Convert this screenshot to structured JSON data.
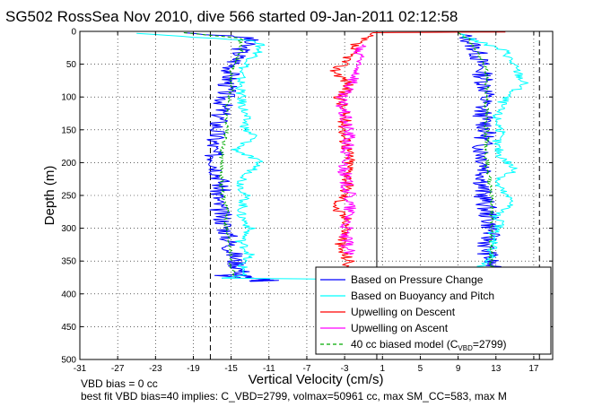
{
  "chart_data": {
    "type": "line",
    "title": "SG502 RossSea Nov 2010, dive 566 started 09-Jan-2011 02:12:58",
    "xlabel": "Vertical Velocity (cm/s)",
    "ylabel": "Depth (m)",
    "xlim": [
      -31,
      19
    ],
    "ylim": [
      0,
      500
    ],
    "y_reversed": true,
    "grid": true,
    "legend_position": "bottom-right",
    "xticks": [
      -31,
      -27,
      -23,
      -19,
      -15,
      -11,
      -7,
      -3,
      1,
      5,
      9,
      13,
      17
    ],
    "yticks": [
      0,
      50,
      100,
      150,
      200,
      250,
      300,
      350,
      400,
      450,
      500
    ],
    "reference_lines": [
      {
        "x": -17.2,
        "style": "dashed"
      },
      {
        "x": 0.4,
        "style": "solid"
      },
      {
        "x": 17.6,
        "style": "dashed"
      }
    ],
    "series": [
      {
        "name": "Based on Pressure Change",
        "color": "#0000ff",
        "segments": [
          {
            "x": [
              -20,
              -13,
              -14,
              -15,
              -15.5,
              -16,
              -16.5,
              -17,
              -16.5,
              -16,
              -16.5,
              -15.5,
              -15,
              -14.5,
              -13.5
            ],
            "y": [
              2,
              10,
              30,
              60,
              90,
              120,
              150,
              180,
              200,
              230,
              260,
              300,
              330,
              350,
              375
            ]
          },
          {
            "x": [
              -14,
              -16.5,
              -16,
              -15,
              -15,
              -14,
              -13.5,
              -12,
              -11,
              -10.5,
              -10.5,
              -11.5,
              -11,
              -11,
              -13,
              -12,
              -12,
              -13
            ],
            "y": [
              375,
              372,
              372,
              371,
              371,
              372,
              374,
              376,
              378,
              379,
              380,
              379,
              379,
              379,
              380,
              380,
              380,
              381
            ]
          },
          {
            "x": [
              9,
              10,
              11,
              11.5,
              12,
              11.5,
              12,
              11.5,
              12,
              11.5,
              12,
              12.5,
              12,
              12.5
            ],
            "y": [
              2,
              10,
              30,
              60,
              90,
              120,
              150,
              180,
              210,
              240,
              270,
              300,
              330,
              360
            ]
          }
        ]
      },
      {
        "name": "Based on Buoyancy and Pitch",
        "color": "#00ffff",
        "segments": [
          {
            "x": [
              -25,
              -12,
              -12,
              -14,
              -14,
              -13.5,
              -13.5,
              -12.5,
              -14.5,
              -12,
              -14,
              -13.5,
              -14,
              -13,
              -14,
              -13,
              -14,
              -13.5,
              -14,
              -16
            ],
            "y": [
              3,
              15,
              30,
              60,
              100,
              130,
              150,
              160,
              180,
              200,
              230,
              250,
              280,
              300,
              320,
              340,
              355,
              365,
              372,
              376
            ]
          },
          {
            "x": [
              -16,
              -8,
              -4,
              -4
            ],
            "y": [
              376,
              377,
              378,
              379
            ]
          },
          {
            "x": [
              9,
              10,
              14,
              15,
              16,
              14,
              13,
              13.5,
              13,
              13.5,
              15,
              13,
              14,
              15,
              13,
              13.5,
              12.5,
              13,
              12.5,
              12.5,
              11.5,
              11
            ],
            "y": [
              2,
              10,
              30,
              55,
              80,
              100,
              130,
              150,
              170,
              190,
              210,
              230,
              250,
              260,
              280,
              295,
              310,
              325,
              335,
              345,
              355,
              365
            ]
          }
        ]
      },
      {
        "name": "Upwelling on Descent",
        "color": "#ff0000",
        "segments": [
          {
            "x": [
              0,
              -0.5,
              -2,
              -2.5,
              -4,
              -2.5,
              -3.5,
              -3,
              -3,
              -2.5,
              -2.5,
              -3,
              -4,
              -2.5,
              -3,
              -3.5,
              -2.5,
              -3
            ],
            "y": [
              2,
              5,
              20,
              40,
              60,
              80,
              100,
              130,
              160,
              190,
              220,
              250,
              270,
              290,
              310,
              330,
              350,
              372
            ]
          },
          {
            "x": [
              0,
              5,
              11,
              14
            ],
            "y": [
              2,
              1.5,
              1,
              1
            ]
          }
        ]
      },
      {
        "name": "Upwelling on Ascent",
        "color": "#ff00ff",
        "segments": [
          {
            "x": [
              -1,
              -2,
              -1,
              -2,
              -1.5,
              -2,
              -3.5,
              -3,
              -2.5,
              -3,
              -3,
              -2.5,
              -2.5,
              -3,
              -2.5
            ],
            "y": [
              20,
              30,
              40,
              50,
              60,
              75,
              100,
              130,
              160,
              190,
              220,
              250,
              280,
              310,
              340
            ]
          }
        ]
      },
      {
        "name": "40 cc biased model (C_VBD=2799)",
        "color": "#00aa00",
        "dashed": true,
        "segments": [
          {
            "x": [
              -20,
              -14,
              -14,
              -15,
              -15,
              -15.5,
              -15.5,
              -16,
              -16,
              -16,
              -15.5,
              -15.5,
              -15,
              -15,
              -14.5
            ],
            "y": [
              2,
              10,
              30,
              60,
              90,
              120,
              150,
              180,
              210,
              240,
              270,
              300,
              330,
              355,
              375
            ]
          },
          {
            "x": [
              9,
              10,
              11,
              12,
              12,
              12,
              12,
              12,
              12.5,
              12.5,
              12.5,
              12.5
            ],
            "y": [
              2,
              10,
              30,
              60,
              90,
              120,
              150,
              200,
              240,
              280,
              320,
              360
            ]
          }
        ]
      }
    ],
    "legend": [
      {
        "label": "Based on Pressure Change",
        "color": "#0000ff",
        "dashed": false
      },
      {
        "label": "Based on Buoyancy and Pitch",
        "color": "#00ffff",
        "dashed": false
      },
      {
        "label": "Upwelling on Descent",
        "color": "#ff0000",
        "dashed": false
      },
      {
        "label": "Upwelling on Ascent",
        "color": "#ff00ff",
        "dashed": false
      },
      {
        "label_main": "40 cc biased model (C",
        "label_sub": "VBD",
        "label_tail": "=2799)",
        "color": "#00aa00",
        "dashed": true
      }
    ],
    "notes": [
      "VBD bias = 0 cc",
      "best fit VBD bias=40 implies: C_VBD=2799, volmax=50961 cc, max SM_CC=583, max M"
    ]
  }
}
